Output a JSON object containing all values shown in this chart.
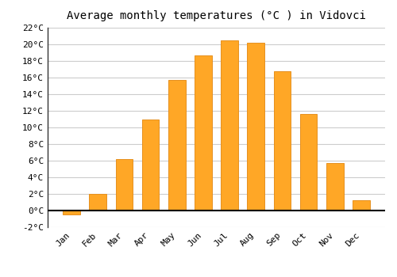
{
  "months": [
    "Jan",
    "Feb",
    "Mar",
    "Apr",
    "May",
    "Jun",
    "Jul",
    "Aug",
    "Sep",
    "Oct",
    "Nov",
    "Dec"
  ],
  "values": [
    -0.5,
    2.0,
    6.2,
    11.0,
    15.7,
    18.7,
    20.5,
    20.2,
    16.8,
    11.6,
    5.7,
    1.2
  ],
  "bar_color": "#FFA726",
  "bar_edge_color": "#E69020",
  "title": "Average monthly temperatures (°C ) in Vidovci",
  "ylim": [
    -2,
    22
  ],
  "yticks": [
    -2,
    0,
    2,
    4,
    6,
    8,
    10,
    12,
    14,
    16,
    18,
    20,
    22
  ],
  "ytick_labels": [
    "-2°C",
    "0°C",
    "2°C",
    "4°C",
    "6°C",
    "8°C",
    "10°C",
    "12°C",
    "14°C",
    "16°C",
    "18°C",
    "20°C",
    "22°C"
  ],
  "background_color": "#ffffff",
  "plot_bg_color": "#ffffff",
  "grid_color": "#cccccc",
  "title_fontsize": 10,
  "tick_fontsize": 8,
  "bar_width": 0.65,
  "left_spine_color": "#333333",
  "figsize": [
    5.0,
    3.5
  ],
  "dpi": 100
}
